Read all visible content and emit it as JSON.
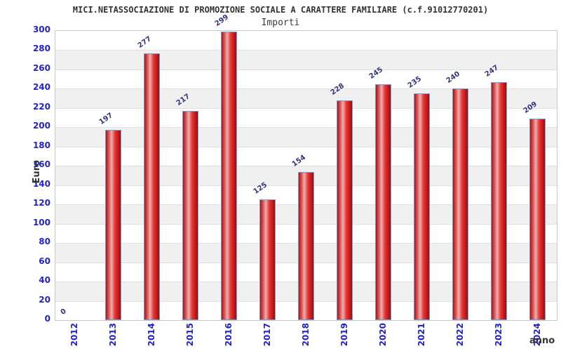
{
  "chart": {
    "title": "MICI.NETASSOCIAZIONE DI PROMOZIONE SOCIALE A CARATTERE FAMILIARE (c.f.91012770201)",
    "subtitle": "Importi",
    "ylabel": "Euro",
    "xlabel": "anno"
  },
  "chart_data": {
    "type": "bar",
    "title": "MICI.NETASSOCIAZIONE DI PROMOZIONE SOCIALE A CARATTERE FAMILIARE (c.f.91012770201)",
    "subtitle": "Importi",
    "xlabel": "anno",
    "ylabel": "Euro",
    "categories": [
      "2012",
      "2013",
      "2014",
      "2015",
      "2016",
      "2017",
      "2018",
      "2019",
      "2020",
      "2021",
      "2022",
      "2023",
      "2024"
    ],
    "values": [
      0,
      197,
      277,
      217,
      299,
      125,
      154,
      228,
      245,
      235,
      240,
      247,
      209
    ],
    "ylim": [
      0,
      300
    ],
    "ytick_step": 20,
    "grid": "horizontal-alternating-bands",
    "legend": "none"
  },
  "colors": {
    "axis_tick_blue": "#2222cc",
    "value_label_navy": "#333380",
    "band_gray": "#f0f0f0",
    "band_white": "#ffffff",
    "grid_line": "#e0e0e0",
    "plot_border": "#c8c8c8",
    "bar_border_blue": "#6fa3d8",
    "bar_red_dark": "#b01010",
    "bar_red_light": "#f0aeae",
    "title_color": "#333333"
  }
}
